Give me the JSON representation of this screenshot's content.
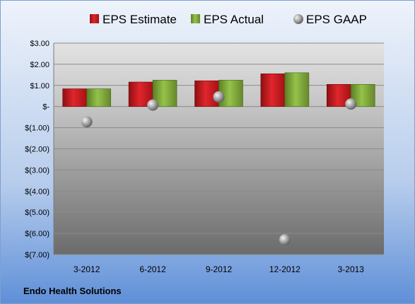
{
  "chart_data": {
    "type": "bar",
    "categories": [
      "3-2012",
      "6-2012",
      "9-2012",
      "12-2012",
      "3-2013"
    ],
    "series": [
      {
        "name": "EPS Estimate",
        "kind": "bar",
        "color": "#c0161c",
        "values": [
          0.84,
          1.16,
          1.22,
          1.55,
          1.05
        ]
      },
      {
        "name": "EPS Actual",
        "kind": "bar",
        "color": "#7aa23a",
        "values": [
          0.84,
          1.25,
          1.25,
          1.6,
          1.05
        ]
      },
      {
        "name": "EPS GAAP",
        "kind": "marker",
        "color": "#8c8c8c",
        "values": [
          -0.72,
          0.07,
          0.46,
          -6.3,
          0.12
        ]
      }
    ],
    "yticks": [
      "$3.00",
      "$2.00",
      "$1.00",
      "$-",
      "$(1.00)",
      "$(2.00)",
      "$(3.00)",
      "$(4.00)",
      "$(5.00)",
      "$(6.00)",
      "$(7.00)"
    ],
    "ylim": [
      -7,
      3
    ],
    "grid": true,
    "legend_position": "top",
    "company": "Endo Health Solutions"
  }
}
